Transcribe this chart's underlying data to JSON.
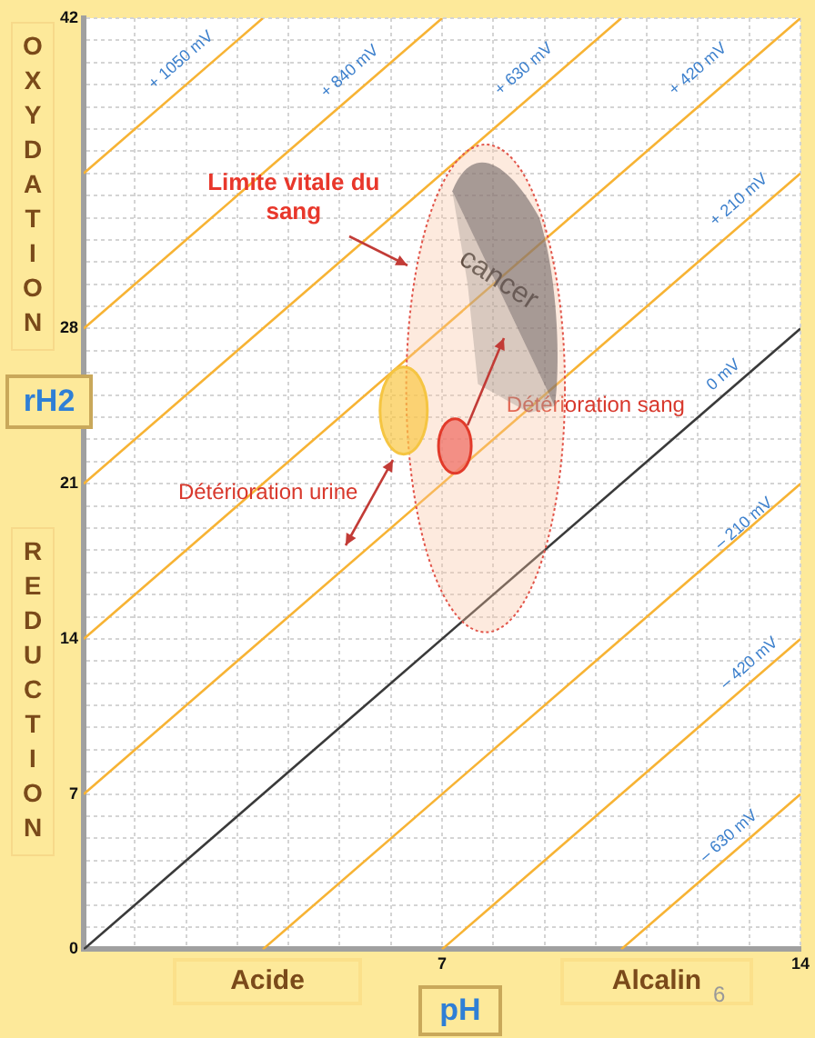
{
  "chart_data": {
    "type": "line",
    "xlabel": "pH",
    "ylabel": "rH2",
    "xlim": [
      0,
      14
    ],
    "ylim": [
      0,
      42
    ],
    "xticks": [
      {
        "value": 0,
        "label": null
      },
      {
        "value": 1,
        "label": null
      },
      {
        "value": 2,
        "label": null
      },
      {
        "value": 3,
        "label": null
      },
      {
        "value": 4,
        "label": null
      },
      {
        "value": 5,
        "label": null
      },
      {
        "value": 6,
        "label": null
      },
      7,
      {
        "value": 8,
        "label": null
      },
      {
        "value": 9,
        "label": null
      },
      {
        "value": 10,
        "label": null
      },
      {
        "value": 11,
        "label": null
      },
      {
        "value": 12,
        "label": null
      },
      {
        "value": 13,
        "label": null
      },
      14
    ],
    "yticks": [
      0,
      {
        "value": 1,
        "label": null
      },
      {
        "value": 2,
        "label": null
      },
      {
        "value": 3,
        "label": null
      },
      {
        "value": 4,
        "label": null
      },
      {
        "value": 5,
        "label": null
      },
      {
        "value": 6,
        "label": null
      },
      7,
      {
        "value": 8,
        "label": null
      },
      {
        "value": 9,
        "label": null
      },
      {
        "value": 10,
        "label": null
      },
      {
        "value": 11,
        "label": null
      },
      {
        "value": 12,
        "label": null
      },
      {
        "value": 13,
        "label": null
      },
      14,
      {
        "value": 15,
        "label": null
      },
      {
        "value": 16,
        "label": null
      },
      {
        "value": 17,
        "label": null
      },
      {
        "value": 18,
        "label": null
      },
      {
        "value": 19,
        "label": null
      },
      {
        "value": 20,
        "label": null
      },
      21,
      {
        "value": 22,
        "label": null
      },
      {
        "value": 23,
        "label": null
      },
      {
        "value": 24,
        "label": null
      },
      {
        "value": 25,
        "label": null
      },
      {
        "value": 26,
        "label": null
      },
      {
        "value": 27,
        "label": null
      },
      28,
      {
        "value": 29,
        "label": null
      },
      {
        "value": 30,
        "label": null
      },
      {
        "value": 31,
        "label": null
      },
      {
        "value": 32,
        "label": null
      },
      {
        "value": 33,
        "label": null
      },
      {
        "value": 34,
        "label": null
      },
      {
        "value": 35,
        "label": null
      },
      {
        "value": 36,
        "label": null
      },
      {
        "value": 37,
        "label": null
      },
      {
        "value": 38,
        "label": null
      },
      {
        "value": 39,
        "label": null
      },
      {
        "value": 40,
        "label": null
      },
      {
        "value": 41,
        "label": null
      },
      42
    ],
    "grid": true,
    "legend": false,
    "marker": "none",
    "line_style": "solid",
    "series": [
      {
        "color": "#f7b334",
        "x": [
          0,
          3.5
        ],
        "values": [
          35,
          42
        ]
      },
      {
        "color": "#f7b334",
        "x": [
          0,
          7
        ],
        "values": [
          28,
          42
        ]
      },
      {
        "color": "#f7b334",
        "x": [
          0,
          10.5
        ],
        "values": [
          21,
          42
        ]
      },
      {
        "color": "#f7b334",
        "x": [
          0,
          14
        ],
        "values": [
          14,
          42
        ]
      },
      {
        "color": "#f7b334",
        "x": [
          0,
          14
        ],
        "values": [
          7,
          35
        ]
      },
      {
        "color": "#3a3a3a",
        "x": [
          0,
          14
        ],
        "values": [
          0,
          28
        ]
      },
      {
        "color": "#f7b334",
        "x": [
          3.5,
          14
        ],
        "values": [
          0,
          21
        ]
      },
      {
        "color": "#f7b334",
        "x": [
          7,
          14
        ],
        "values": [
          0,
          14
        ]
      },
      {
        "color": "#f7b334",
        "x": [
          10.5,
          14
        ],
        "values": [
          0,
          7
        ]
      }
    ],
    "annotations": [
      "+ 1050 mV",
      "+ 840 mV",
      "+ 630 mV",
      "+ 420 mV",
      "+ 210 mV",
      "0 mV",
      "– 210 mV",
      "– 420 mV",
      "– 630 mV",
      "Limite vitale du sang",
      "cancer",
      "Détérioration sang",
      "Détérioration urine",
      "OXYDATION",
      "REDUCTION",
      "Acide",
      "Alcalin",
      "6"
    ]
  }
}
